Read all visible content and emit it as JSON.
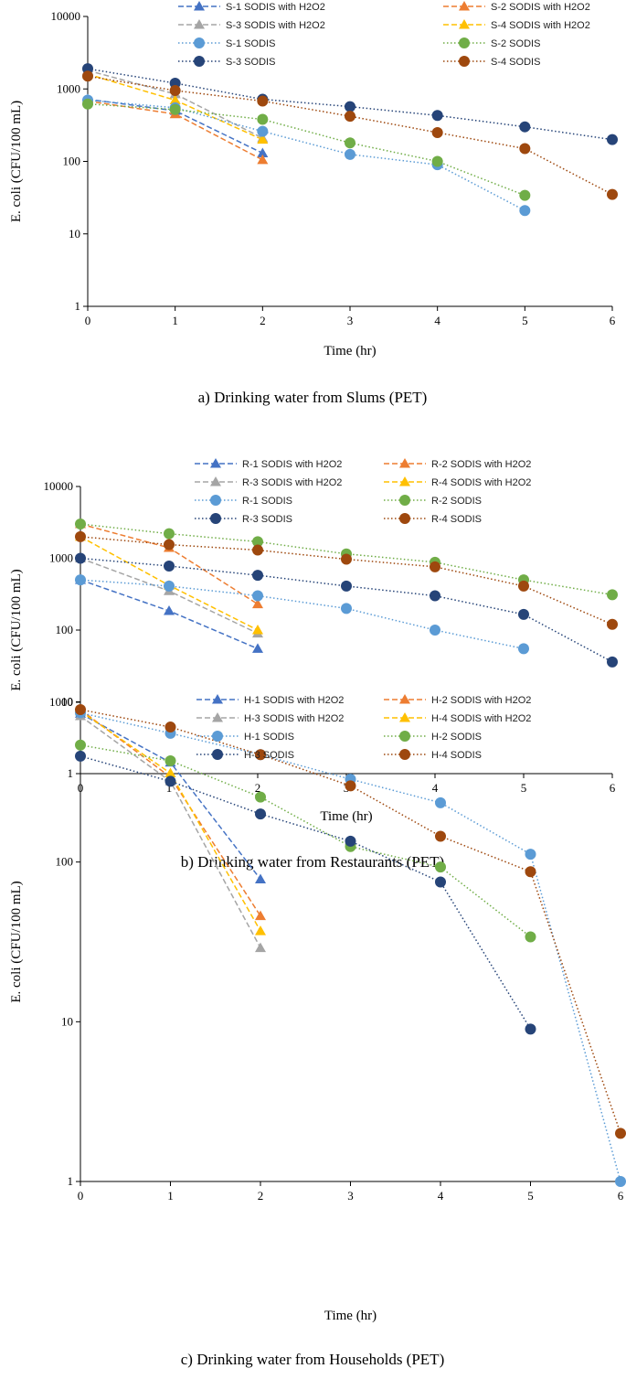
{
  "colors": {
    "blue": "#4472C4",
    "orange": "#ED7D31",
    "gray": "#A5A5A5",
    "yellow": "#FFC000",
    "lightblue": "#5B9BD5",
    "green": "#70AD47",
    "navy": "#264478",
    "brown": "#9E480E"
  },
  "chart_data": [
    {
      "type": "line",
      "title": "a) Drinking water from Slums (PET)",
      "xlabel": "Time (hr)",
      "ylabel": "E. coli  (CFU/100 mL)",
      "yscale": "log",
      "ylim": [
        1,
        10000
      ],
      "xlim": [
        0,
        6
      ],
      "x_ticks": [
        "0",
        "1",
        "2",
        "3",
        "4",
        "5",
        "6"
      ],
      "y_ticks": [
        "1",
        "10",
        "100",
        "1000",
        "10000"
      ],
      "legend_position": "top",
      "series": [
        {
          "name": "S-1 SODIS with H2O2",
          "color": "#4472C4",
          "marker": "triangle",
          "dash": "dashed",
          "x": [
            0,
            1,
            2
          ],
          "values": [
            720,
            500,
            130
          ]
        },
        {
          "name": "S-2 SODIS with H2O2",
          "color": "#ED7D31",
          "marker": "triangle",
          "dash": "dashed",
          "x": [
            0,
            1,
            2
          ],
          "values": [
            680,
            450,
            105
          ]
        },
        {
          "name": "S-3 SODIS with H2O2",
          "color": "#A5A5A5",
          "marker": "triangle",
          "dash": "dashed",
          "x": [
            0,
            1,
            2
          ],
          "values": [
            1800,
            850,
            210
          ]
        },
        {
          "name": "S-4 SODIS with H2O2",
          "color": "#FFC000",
          "marker": "triangle",
          "dash": "dashed",
          "x": [
            0,
            1,
            2
          ],
          "values": [
            1600,
            700,
            200
          ]
        },
        {
          "name": "S-1 SODIS",
          "color": "#5B9BD5",
          "marker": "circle",
          "dash": "dotted",
          "x": [
            0,
            1,
            2,
            3,
            4,
            5
          ],
          "values": [
            700,
            550,
            260,
            125,
            90,
            21
          ]
        },
        {
          "name": "S-2 SODIS",
          "color": "#70AD47",
          "marker": "circle",
          "dash": "dotted",
          "x": [
            0,
            1,
            2,
            3,
            4,
            5
          ],
          "values": [
            620,
            520,
            380,
            180,
            100,
            34
          ]
        },
        {
          "name": "S-3 SODIS",
          "color": "#264478",
          "marker": "circle",
          "dash": "dotted",
          "x": [
            0,
            1,
            2,
            3,
            4,
            5,
            6
          ],
          "values": [
            1900,
            1200,
            720,
            570,
            430,
            300,
            200
          ]
        },
        {
          "name": "S-4 SODIS",
          "color": "#9E480E",
          "marker": "circle",
          "dash": "dotted",
          "x": [
            0,
            1,
            2,
            3,
            4,
            5,
            6
          ],
          "values": [
            1500,
            950,
            680,
            420,
            250,
            150,
            35
          ]
        }
      ]
    },
    {
      "type": "line",
      "title": "b) Drinking water from Restaurants (PET)",
      "xlabel": "Time (hr)",
      "ylabel": "E. coli  (CFU/100 mL)",
      "yscale": "log",
      "ylim": [
        1,
        10000
      ],
      "xlim": [
        0,
        6
      ],
      "x_ticks": [
        "0",
        "1",
        "2",
        "3",
        "4",
        "5",
        "6"
      ],
      "y_ticks": [
        "1",
        "10",
        "100",
        "1000",
        "10000"
      ],
      "legend_position": "top",
      "series": [
        {
          "name": "R-1 SODIS with H2O2",
          "color": "#4472C4",
          "marker": "triangle",
          "dash": "dashed",
          "x": [
            0,
            1,
            2
          ],
          "values": [
            500,
            185,
            55
          ]
        },
        {
          "name": "R-2 SODIS with H2O2",
          "color": "#ED7D31",
          "marker": "triangle",
          "dash": "dashed",
          "x": [
            0,
            1,
            2
          ],
          "values": [
            3000,
            1400,
            230
          ]
        },
        {
          "name": "R-3 SODIS with H2O2",
          "color": "#A5A5A5",
          "marker": "triangle",
          "dash": "dashed",
          "x": [
            0,
            1,
            2
          ],
          "values": [
            1000,
            350,
            90
          ]
        },
        {
          "name": "R-4 SODIS with H2O2",
          "color": "#FFC000",
          "marker": "triangle",
          "dash": "dashed",
          "x": [
            0,
            1,
            2
          ],
          "values": [
            2000,
            420,
            100
          ]
        },
        {
          "name": "R-1 SODIS",
          "color": "#5B9BD5",
          "marker": "circle",
          "dash": "dotted",
          "x": [
            0,
            1,
            2,
            3,
            4,
            5
          ],
          "values": [
            500,
            410,
            300,
            200,
            100,
            55
          ]
        },
        {
          "name": "R-2 SODIS",
          "color": "#70AD47",
          "marker": "circle",
          "dash": "dotted",
          "x": [
            0,
            1,
            2,
            3,
            4,
            5,
            6
          ],
          "values": [
            3000,
            2200,
            1700,
            1150,
            880,
            500,
            310
          ]
        },
        {
          "name": "R-3 SODIS",
          "color": "#264478",
          "marker": "circle",
          "dash": "dotted",
          "x": [
            0,
            1,
            2,
            3,
            4,
            5,
            6
          ],
          "values": [
            1000,
            780,
            580,
            410,
            300,
            165,
            36
          ]
        },
        {
          "name": "R-4 SODIS",
          "color": "#9E480E",
          "marker": "circle",
          "dash": "dotted",
          "x": [
            0,
            1,
            2,
            3,
            4,
            5,
            6
          ],
          "values": [
            2000,
            1550,
            1300,
            970,
            760,
            410,
            120
          ]
        }
      ]
    },
    {
      "type": "line",
      "title": "c) Drinking water from Households (PET)",
      "xlabel": "Time (hr)",
      "ylabel": "E. coli  (CFU/100 mL)",
      "yscale": "log",
      "ylim": [
        1,
        1000
      ],
      "xlim": [
        0,
        6
      ],
      "x_ticks": [
        "0",
        "1",
        "2",
        "3",
        "4",
        "5",
        "6"
      ],
      "y_ticks": [
        "1",
        "10",
        "100",
        "1000"
      ],
      "legend_position": "top",
      "series": [
        {
          "name": "H-1 SODIS with H2O2",
          "color": "#4472C4",
          "marker": "triangle",
          "dash": "dashed",
          "x": [
            0,
            1,
            2
          ],
          "values": [
            850,
            420,
            78
          ]
        },
        {
          "name": "H-2 SODIS with H2O2",
          "color": "#ED7D31",
          "marker": "triangle",
          "dash": "dashed",
          "x": [
            0,
            1,
            2
          ],
          "values": [
            900,
            340,
            46
          ]
        },
        {
          "name": "H-3 SODIS with H2O2",
          "color": "#A5A5A5",
          "marker": "triangle",
          "dash": "dashed",
          "x": [
            0,
            1,
            2
          ],
          "values": [
            820,
            320,
            29
          ]
        },
        {
          "name": "H-4 SODIS with H2O2",
          "color": "#FFC000",
          "marker": "triangle",
          "dash": "dashed",
          "x": [
            0,
            1,
            2
          ],
          "values": [
            880,
            360,
            37
          ]
        },
        {
          "name": "H-1 SODIS",
          "color": "#5B9BD5",
          "marker": "circle",
          "dash": "dotted",
          "x": [
            0,
            1,
            2,
            3,
            4,
            5,
            6
          ],
          "values": [
            860,
            640,
            470,
            330,
            235,
            112,
            1
          ]
        },
        {
          "name": "H-2 SODIS",
          "color": "#70AD47",
          "marker": "circle",
          "dash": "dotted",
          "x": [
            0,
            1,
            2,
            3,
            4,
            5
          ],
          "values": [
            540,
            430,
            255,
            125,
            93,
            34
          ]
        },
        {
          "name": "H-3 SODIS",
          "color": "#264478",
          "marker": "circle",
          "dash": "dotted",
          "x": [
            0,
            1,
            2,
            3,
            4,
            5
          ],
          "values": [
            460,
            320,
            200,
            135,
            75,
            9
          ]
        },
        {
          "name": "H-4 SODIS",
          "color": "#9E480E",
          "marker": "circle",
          "dash": "dotted",
          "x": [
            0,
            1,
            2,
            3,
            4,
            5,
            6
          ],
          "values": [
            900,
            700,
            470,
            300,
            145,
            87,
            2
          ]
        }
      ]
    }
  ]
}
